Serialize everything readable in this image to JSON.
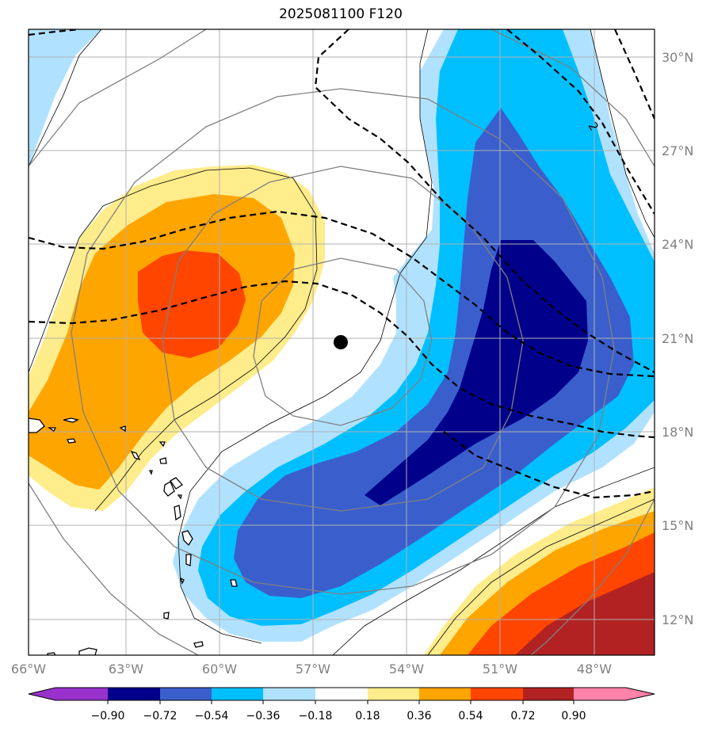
{
  "title": "2025081100 F120",
  "map": {
    "region": "Central Atlantic / Lesser Antilles",
    "lon_range_deg": [
      -66.0,
      -46.0
    ],
    "lat_range_deg": [
      11.0,
      31.0
    ],
    "lon_labels": [
      "66°W",
      "63°W",
      "60°W",
      "57°W",
      "54°W",
      "51°W",
      "48°W"
    ],
    "lat_labels": [
      "30°N",
      "27°N",
      "24°N",
      "21°N",
      "18°N",
      "15°N",
      "12°N"
    ],
    "storm_center": {
      "lon": -56.0,
      "lat": 20.85
    },
    "contour_label": "2"
  },
  "colorbar": {
    "ticks": [
      "−0.90",
      "−0.72",
      "−0.54",
      "−0.36",
      "−0.18",
      "0.18",
      "0.36",
      "0.54",
      "0.72",
      "0.90"
    ],
    "colors": [
      "#9932cc",
      "#00008b",
      "#3a5fcd",
      "#00bfff",
      "#b0e2ff",
      "#ffffff",
      "#ffec8b",
      "#ffa500",
      "#ff4500",
      "#b22222",
      "#ff82ab"
    ]
  }
}
